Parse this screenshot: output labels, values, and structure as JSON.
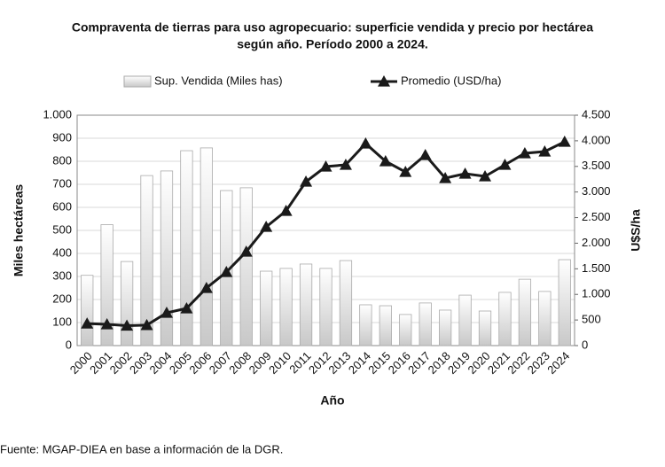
{
  "chart_data": {
    "type": "bar-line",
    "title": [
      "Compraventa de tierras para uso agropecuario: superficie vendida y precio por hectárea",
      "según año. Período 2000 a 2024."
    ],
    "x_label": "Año",
    "y_label": "Miles hectáreas",
    "y2_label": "U$S/ha",
    "categories": [
      "2000",
      "2001",
      "2002",
      "2003",
      "2004",
      "2005",
      "2006",
      "2007",
      "2008",
      "2009",
      "2010",
      "2011",
      "2012",
      "2013",
      "2014",
      "2015",
      "2016",
      "2017",
      "2018",
      "2019",
      "2020",
      "2021",
      "2022",
      "2023",
      "2024"
    ],
    "series": [
      {
        "name": "Sup. Vendida (Miles has)",
        "type": "bar",
        "color": "#d0d0d0",
        "values": [
          305,
          525,
          365,
          738,
          758,
          846,
          858,
          673,
          685,
          323,
          335,
          354,
          335,
          369,
          177,
          173,
          135,
          185,
          154,
          219,
          150,
          231,
          288,
          235,
          373
        ]
      },
      {
        "name": "Promedio (USD/ha)",
        "type": "line",
        "axis": "y2",
        "color": "#1a1a1a",
        "values": [
          430,
          415,
          390,
          400,
          640,
          727,
          1125,
          1436,
          1835,
          2319,
          2631,
          3202,
          3496,
          3531,
          3946,
          3600,
          3392,
          3721,
          3271,
          3357,
          3306,
          3531,
          3756,
          3790,
          3981
        ]
      }
    ],
    "ylim": [
      0,
      1000
    ],
    "yticks": [
      0,
      100,
      200,
      300,
      400,
      500,
      600,
      700,
      800,
      900,
      {
        "value": 1000,
        "label": "1.000"
      }
    ],
    "y2lim": [
      0,
      4500
    ],
    "y2ticks": [
      0,
      500,
      {
        "value": 1000,
        "label": "1.000"
      },
      {
        "value": 1500,
        "label": "1.500"
      },
      {
        "value": 2000,
        "label": "2.000"
      },
      {
        "value": 2500,
        "label": "2.500"
      },
      {
        "value": 3000,
        "label": "3.000"
      },
      {
        "value": 3500,
        "label": "3.500"
      },
      {
        "value": 4000,
        "label": "4.000"
      },
      {
        "value": 4500,
        "label": "4.500"
      }
    ],
    "grid": true,
    "source": "Fuente: MGAP-DIEA en base a información de la DGR."
  }
}
